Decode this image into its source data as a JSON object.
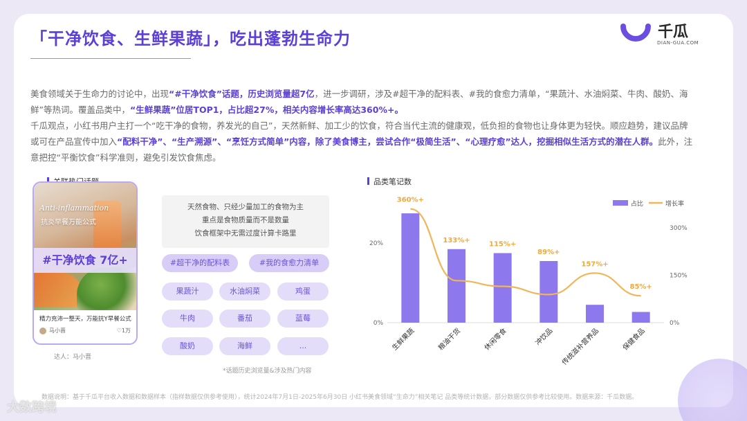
{
  "page": {
    "title": "「干净饮食、生鲜果蔬」，吃出蓬勃生命力"
  },
  "logo": {
    "name": "千瓜",
    "subtitle": "DIAN-GUA.COM"
  },
  "paragraph1": {
    "p1": "美食领域关于生命力的讨论中，出现",
    "b1": "“#干净饮食”话题，历史浏览量超7亿",
    "p2": "，进一步调研，涉及#超干净的配料表、#我的食愈力清单，“果蔬汁、水油焖菜、牛肉、酸奶、海鲜”等热词。覆盖品类中，",
    "b2": "“生鲜果蔬”位居TOP1，占比超27%，相关内容增长率高达360%+。"
  },
  "paragraph2": {
    "p1": "千瓜观点，小红书用户主打一个“吃干净的食物，养发光的自己”，天然新鲜、加工少的饮食，符合当代主流的健康观，低负担的食物也让身体更为轻快。顺应趋势，建议品牌或可在产品宣传中加入",
    "b1": "“配料干净”、“生产溯源”、“烹饪方式简单”内容，除了美食博主，尝试合作“极简生活”、“心理疗愈”达人，挖掘相似生活方式的潜在人群。",
    "p2": "此外，注意把控“平衡饮食”科学准则，避免引发饮食焦虑。"
  },
  "topics_section": {
    "heading": "关联热门话题",
    "card": {
      "script_title": "Anti-inflammation",
      "sub_title": "抗炎早餐万能公式",
      "badge": "#干净饮食 7亿+",
      "caption": "精力充沛一整天，万能抗Y早餐公式",
      "author": "马小晋",
      "likes": "♡1万"
    },
    "card_footnote": "达人：马小晋",
    "quote_lines": [
      "天然食物、只经少量加工的食物为主",
      "重点是食物质量而不是数量",
      "饮食框架中无需过度计算卡路里"
    ],
    "tags": [
      "#超干净的配料表",
      "#我的食愈力清单",
      "果蔬汁",
      "水油焖菜",
      "鸡蛋",
      "牛肉",
      "番茄",
      "蓝莓",
      "酸奶",
      "海鲜",
      "..."
    ],
    "note": "*话题历史浏览量&涉及热门内容"
  },
  "chart_section": {
    "heading": "品类笔记数"
  },
  "chart_data": {
    "type": "bar",
    "categories": [
      "生鲜果蔬",
      "粮油干货",
      "休闲零食",
      "冲饮品",
      "传统滋补营养品",
      "保健食品"
    ],
    "series": [
      {
        "name": "占比",
        "type": "bar",
        "axis": "left",
        "values": [
          27.5,
          18.5,
          17.5,
          15.5,
          4.5,
          2.7
        ],
        "color": "#8d78ee"
      },
      {
        "name": "增长率",
        "type": "line",
        "axis": "right",
        "values": [
          360,
          133,
          115,
          89,
          157,
          85
        ],
        "labels": [
          "360%+",
          "133%+",
          "115%+",
          "89%+",
          "157%+",
          "85%+"
        ],
        "color": "#f0b659"
      }
    ],
    "y_left": {
      "ticks": [
        "0%",
        "20%"
      ],
      "range": [
        0,
        31
      ]
    },
    "y_right": {
      "ticks": [
        "0%",
        "150%",
        "300%"
      ],
      "range": [
        0,
        390
      ]
    },
    "legend_position": "top-right",
    "grid": false
  },
  "footer": {
    "data_source": "数据说明：基于千瓜平台收入数据和数据样本（指样数据仅供参考使用），统计2024年7月1日-2025年6月30日 小红书美食领域“生命力”相关笔记 品类等统计数据，部分数据仅供参考比较使用。数据来源：千瓜数据。",
    "watermark": "大数跨境"
  }
}
